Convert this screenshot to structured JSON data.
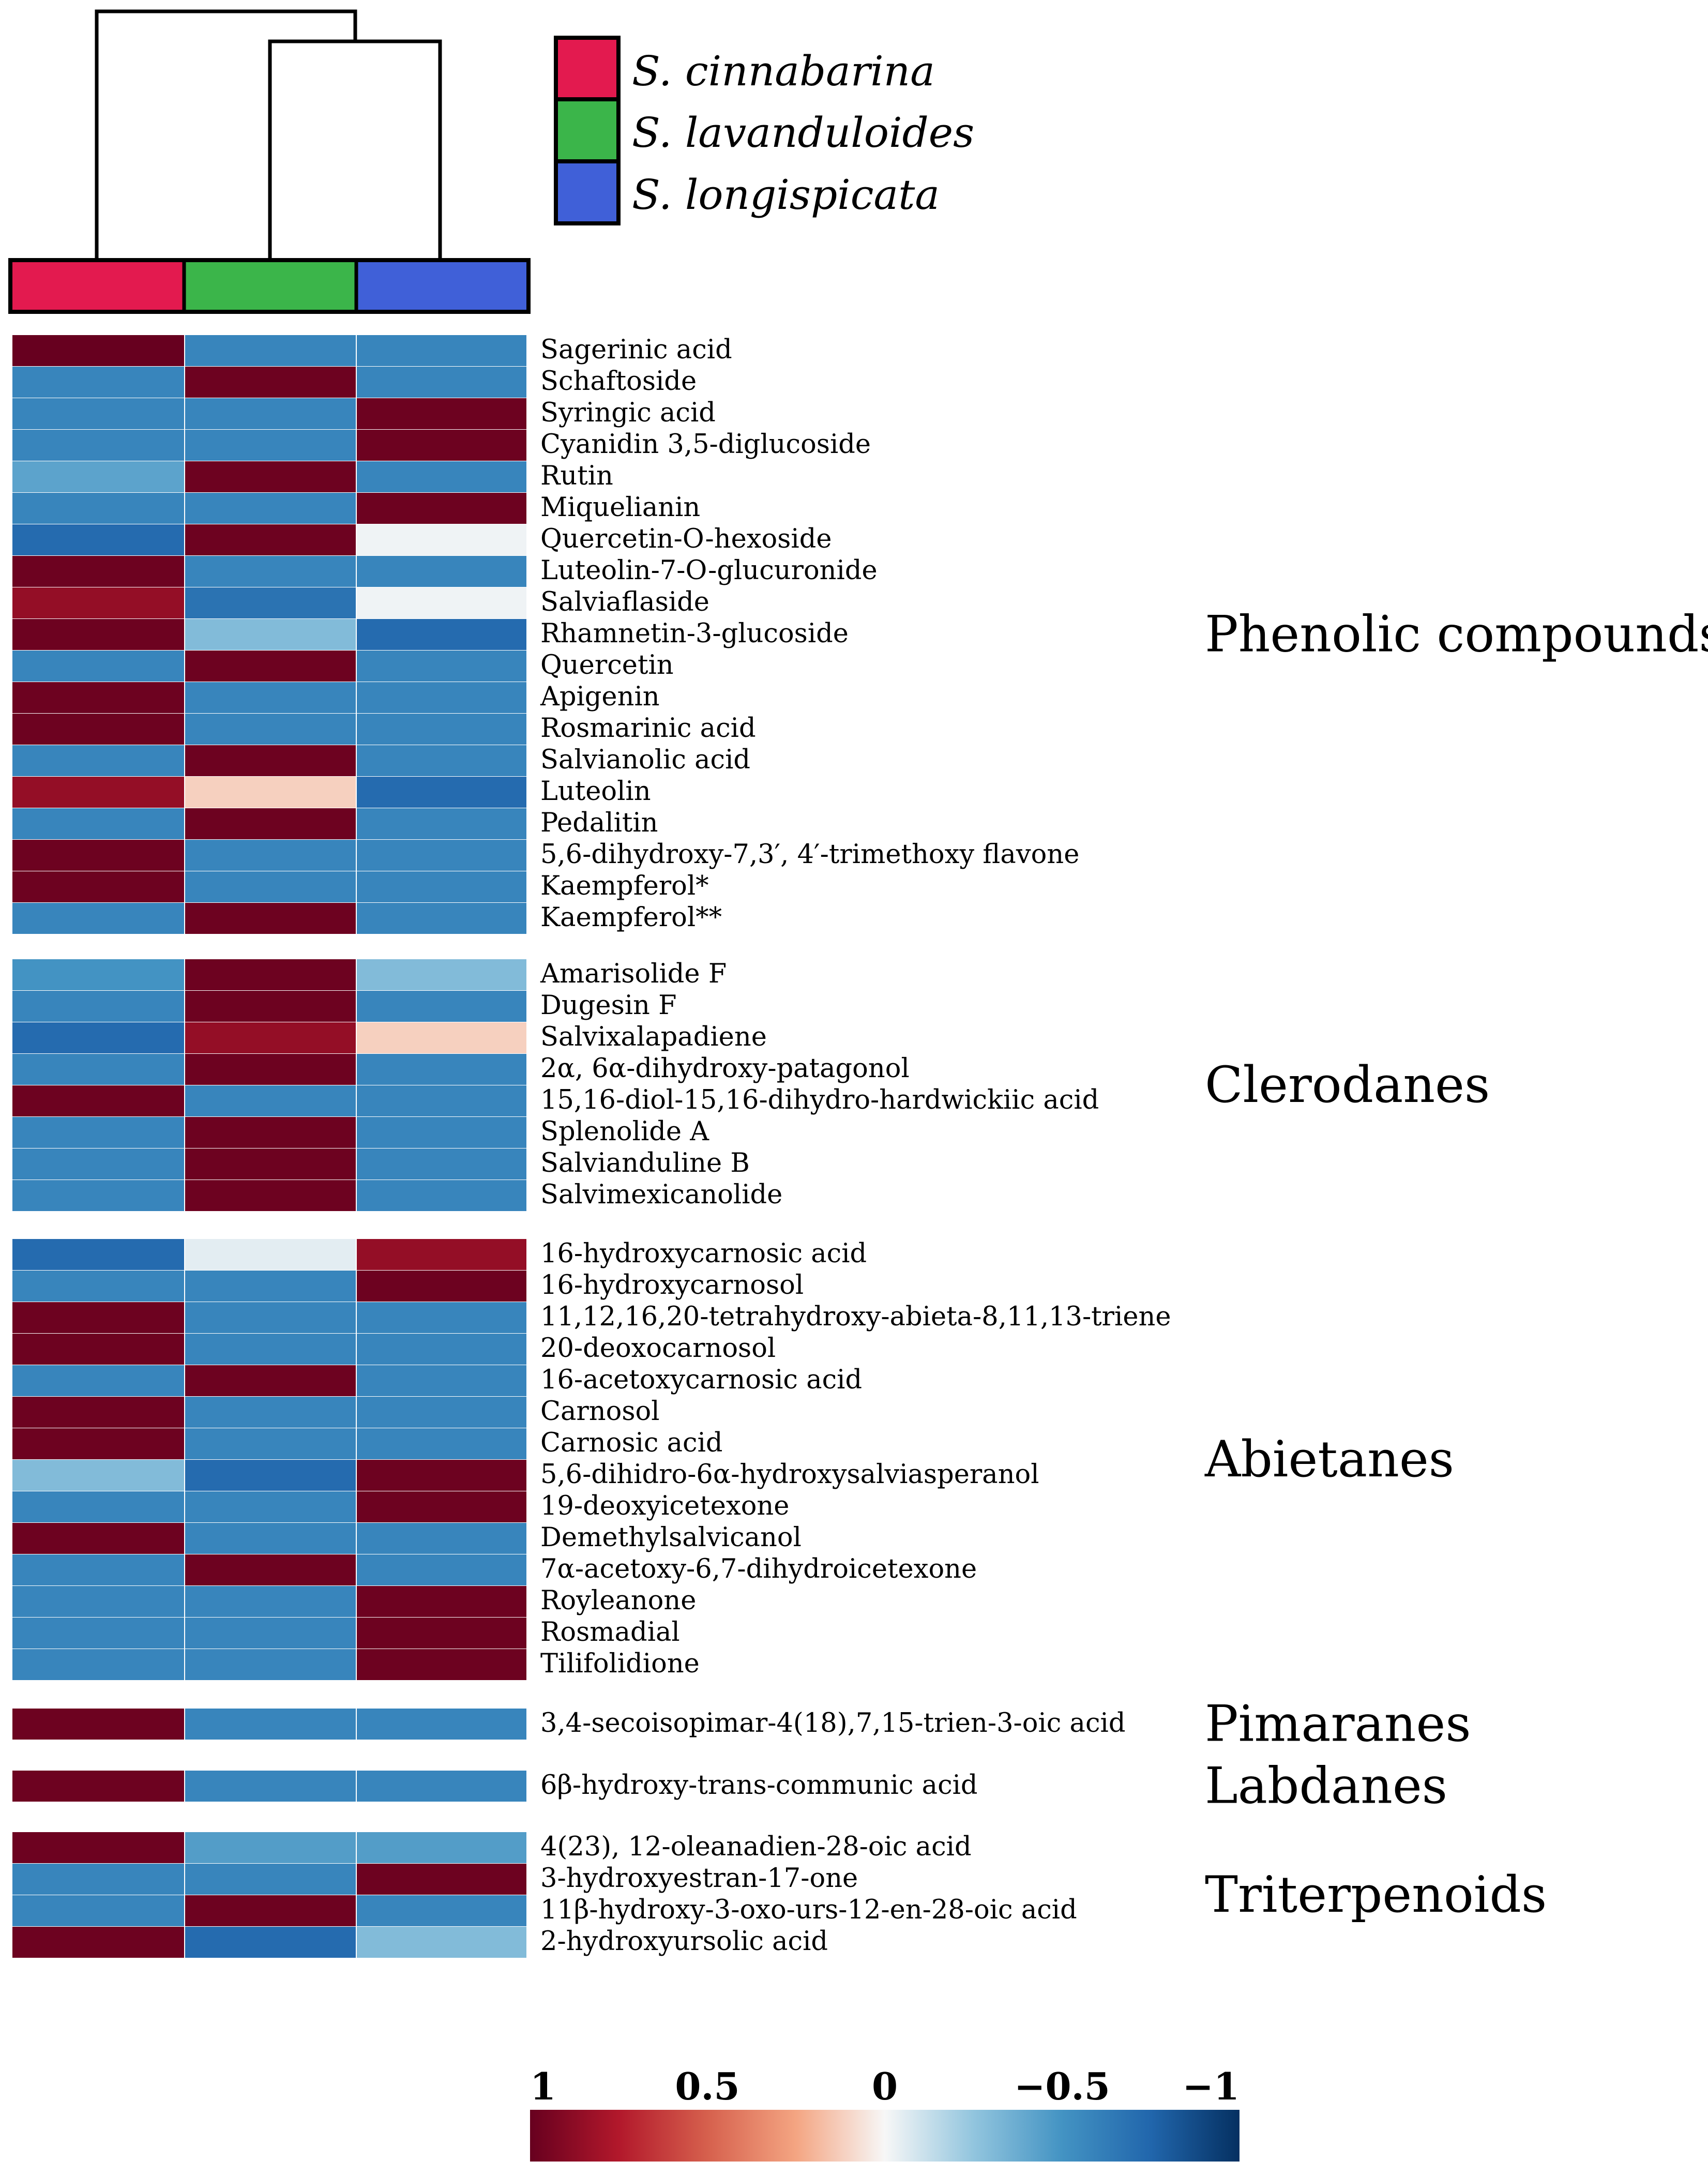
{
  "chart_data": {
    "type": "heatmap",
    "title": "",
    "columns": [
      {
        "name": "S. cinnabarina",
        "color": "#e31a4f"
      },
      {
        "name": "S. lavanduloides",
        "color": "#3bb54a"
      },
      {
        "name": "S. longispicata",
        "color": "#4060d8"
      }
    ],
    "dendrogram": [
      {
        "merge": [
          "S. lavanduloides",
          "S. longispicata"
        ],
        "order": 1
      },
      {
        "merge": [
          "S. cinnabarina",
          "S. lavanduloides + S. longispicata"
        ],
        "order": 2
      }
    ],
    "color_scale": {
      "range": [
        1,
        -1
      ],
      "ticks": [
        {
          "value": 1,
          "label": "1"
        },
        {
          "value": 0.5,
          "label": "0.5"
        },
        {
          "value": 0,
          "label": "0"
        },
        {
          "value": -0.5,
          "label": "−0.5"
        },
        {
          "value": -1,
          "label": "−1"
        }
      ],
      "stops": [
        {
          "value": 1,
          "color": "#67001f"
        },
        {
          "value": 0.75,
          "color": "#b2182b"
        },
        {
          "value": 0.5,
          "color": "#d6604d"
        },
        {
          "value": 0.25,
          "color": "#f4a582"
        },
        {
          "value": 0,
          "color": "#f7f7f7"
        },
        {
          "value": -0.25,
          "color": "#92c5de"
        },
        {
          "value": -0.5,
          "color": "#4393c3"
        },
        {
          "value": -0.75,
          "color": "#2166ac"
        },
        {
          "value": -1,
          "color": "#053061"
        }
      ]
    },
    "groups": [
      {
        "name": "Phenolic compounds",
        "rows": [
          {
            "label": "Sagerinic acid",
            "values": [
              1,
              -0.58,
              -0.58
            ]
          },
          {
            "label": "Schaftoside",
            "values": [
              -0.58,
              0.98,
              -0.58
            ]
          },
          {
            "label": "Syringic acid",
            "values": [
              -0.58,
              -0.58,
              0.98
            ]
          },
          {
            "label": "Cyanidin 3,5-diglucoside",
            "values": [
              -0.58,
              -0.58,
              0.98
            ]
          },
          {
            "label": "Rutin",
            "values": [
              -0.42,
              0.98,
              -0.58
            ]
          },
          {
            "label": "Miquelianin",
            "values": [
              -0.58,
              -0.58,
              0.98
            ]
          },
          {
            "label": "Quercetin-O-hexoside",
            "values": [
              -0.72,
              0.98,
              -0.02
            ]
          },
          {
            "label": "Luteolin-7-O-glucuronide",
            "values": [
              0.98,
              -0.58,
              -0.58
            ]
          },
          {
            "label": "Salviaflaside",
            "values": [
              0.85,
              -0.68,
              -0.02
            ]
          },
          {
            "label": "Rhamnetin-3-glucoside",
            "values": [
              0.98,
              -0.3,
              -0.72
            ]
          },
          {
            "label": "Quercetin",
            "values": [
              -0.58,
              0.98,
              -0.58
            ]
          },
          {
            "label": "Apigenin",
            "values": [
              0.98,
              -0.58,
              -0.58
            ]
          },
          {
            "label": "Rosmarinic acid",
            "values": [
              0.98,
              -0.58,
              -0.58
            ]
          },
          {
            "label": "Salvianolic acid",
            "values": [
              -0.58,
              0.98,
              -0.58
            ]
          },
          {
            "label": "Luteolin",
            "values": [
              0.85,
              0.12,
              -0.72
            ]
          },
          {
            "label": "Pedalitin",
            "values": [
              -0.58,
              0.98,
              -0.58
            ]
          },
          {
            "label": "5,6-dihydroxy-7,3′, 4′-trimethoxy flavone",
            "values": [
              0.98,
              -0.58,
              -0.58
            ]
          },
          {
            "label": "Kaempferol*",
            "values": [
              0.98,
              -0.58,
              -0.58
            ]
          },
          {
            "label": "Kaempferol**",
            "values": [
              -0.58,
              0.98,
              -0.58
            ]
          }
        ]
      },
      {
        "name": "Clerodanes",
        "rows": [
          {
            "label": "Amarisolide F",
            "values": [
              -0.5,
              0.98,
              -0.3
            ]
          },
          {
            "label": "Dugesin F",
            "values": [
              -0.58,
              0.98,
              -0.58
            ]
          },
          {
            "label": "Salvixalapadiene",
            "values": [
              -0.72,
              0.85,
              0.12
            ]
          },
          {
            "label": "2α, 6α-dihydroxy-patagonol",
            "values": [
              -0.58,
              0.98,
              -0.58
            ]
          },
          {
            "label": "15,16-diol-15,16-dihydro-hardwickiic acid",
            "values": [
              0.98,
              -0.58,
              -0.58
            ]
          },
          {
            "label": "Splenolide A",
            "values": [
              -0.58,
              0.98,
              -0.58
            ]
          },
          {
            "label": "Salvianduline B",
            "values": [
              -0.58,
              0.98,
              -0.58
            ]
          },
          {
            "label": "Salvimexicanolide",
            "values": [
              -0.58,
              0.98,
              -0.58
            ]
          }
        ]
      },
      {
        "name": "Abietanes",
        "rows": [
          {
            "label": "16-hydroxycarnosic acid",
            "values": [
              -0.72,
              -0.05,
              0.85
            ]
          },
          {
            "label": "16-hydroxycarnosol",
            "values": [
              -0.58,
              -0.58,
              0.98
            ]
          },
          {
            "label": "11,12,16,20-tetrahydroxy-abieta-8,11,13-triene",
            "values": [
              0.98,
              -0.58,
              -0.58
            ]
          },
          {
            "label": "20-deoxocarnosol",
            "values": [
              0.98,
              -0.58,
              -0.58
            ]
          },
          {
            "label": "16-acetoxycarnosic acid",
            "values": [
              -0.58,
              0.98,
              -0.58
            ]
          },
          {
            "label": "Carnosol",
            "values": [
              0.98,
              -0.58,
              -0.58
            ]
          },
          {
            "label": "Carnosic acid",
            "values": [
              0.98,
              -0.58,
              -0.58
            ]
          },
          {
            "label": "5,6-dihidro-6α-hydroxysalviasperanol",
            "values": [
              -0.3,
              -0.72,
              0.98
            ]
          },
          {
            "label": "19-deoxyicetexone",
            "values": [
              -0.58,
              -0.58,
              0.98
            ]
          },
          {
            "label": "Demethylsalvicanol",
            "values": [
              0.98,
              -0.58,
              -0.58
            ]
          },
          {
            "label": "7α-acetoxy-6,7-dihydroicetexone",
            "values": [
              -0.58,
              0.98,
              -0.58
            ]
          },
          {
            "label": "Royleanone",
            "values": [
              -0.58,
              -0.58,
              0.98
            ]
          },
          {
            "label": "Rosmadial",
            "values": [
              -0.58,
              -0.58,
              0.98
            ]
          },
          {
            "label": "Tilifolidione",
            "values": [
              -0.58,
              -0.58,
              0.98
            ]
          }
        ]
      },
      {
        "name": "Pimaranes",
        "rows": [
          {
            "label": "3,4-secoisopimar-4(18),7,15-trien-3-oic acid",
            "values": [
              0.98,
              -0.58,
              -0.58
            ]
          }
        ]
      },
      {
        "name": "Labdanes",
        "rows": [
          {
            "label": "6β-hydroxy-trans-communic acid",
            "values": [
              0.98,
              -0.58,
              -0.58
            ]
          }
        ]
      },
      {
        "name": "Triterpenoids",
        "rows": [
          {
            "label": "4(23), 12-oleanadien-28-oic acid",
            "values": [
              0.98,
              -0.45,
              -0.45
            ]
          },
          {
            "label": "3-hydroxyestran-17-one",
            "values": [
              -0.58,
              -0.58,
              0.98
            ]
          },
          {
            "label": "11β-hydroxy-3-oxo-urs-12-en-28-oic acid",
            "values": [
              -0.58,
              0.98,
              -0.58
            ]
          },
          {
            "label": "2-hydroxyursolic acid",
            "values": [
              0.98,
              -0.72,
              -0.3
            ]
          }
        ]
      }
    ]
  }
}
